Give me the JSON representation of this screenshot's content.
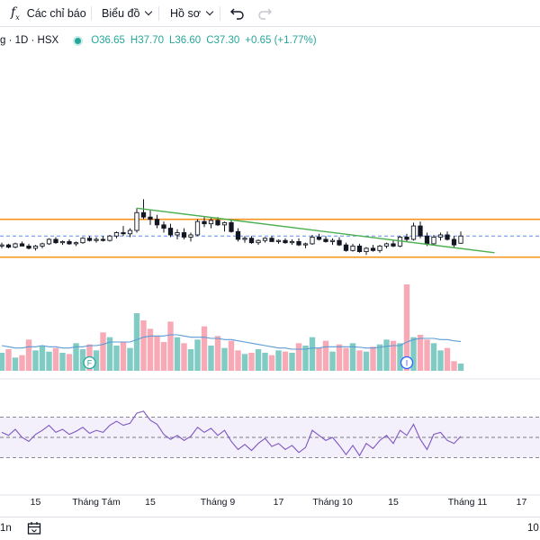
{
  "toolbar": {
    "indicators_icon": "fx-icon",
    "indicators_label": "Các chỉ báo",
    "chart_label": "Biểu đồ",
    "profile_label": "Hồ sơ",
    "undo_icon": "undo-icon",
    "redo_icon": "redo-icon"
  },
  "legend": {
    "symbol": "g · 1D · HSX",
    "open": "O36.65",
    "high": "H37.70",
    "low": "L36.60",
    "close": "C37.30",
    "change": "+0.65 (+1.77%)",
    "up_color": "#26a69a",
    "down_color": "#131722"
  },
  "x_axis": {
    "labels": [
      "15",
      "Tháng Tám",
      "15",
      "Tháng 9",
      "17",
      "Tháng 10",
      "15",
      "Tháng 11",
      "17"
    ]
  },
  "markers": {
    "financial": "F",
    "info": "I"
  },
  "bottom": {
    "timeframe_label": "1n",
    "calendar_icon": "calendar-icon",
    "right_label": "10"
  },
  "colors": {
    "support_resistance": "#f7931a",
    "trendline": "#4caf50",
    "volume_up": "#80cbc4",
    "volume_down": "#f7a9b6",
    "volume_ma": "#5b9bd5",
    "rsi_line": "#7e57c2",
    "rsi_band": "#f3effb"
  },
  "chart_data": {
    "type": "candlestick",
    "title": "g · 1D · HSX",
    "price_panel": {
      "ohlc": [
        [
          36.4,
          36.7,
          36.2,
          36.5
        ],
        [
          36.5,
          36.6,
          36.2,
          36.3
        ],
        [
          36.3,
          36.7,
          36.2,
          36.6
        ],
        [
          36.6,
          36.8,
          36.4,
          36.4
        ],
        [
          36.4,
          36.6,
          36.1,
          36.2
        ],
        [
          36.2,
          36.5,
          36.0,
          36.4
        ],
        [
          36.4,
          36.7,
          36.2,
          36.6
        ],
        [
          36.6,
          37.1,
          36.5,
          37.0
        ],
        [
          37.0,
          37.2,
          36.6,
          36.7
        ],
        [
          36.7,
          36.9,
          36.5,
          36.8
        ],
        [
          36.8,
          37.0,
          36.5,
          36.6
        ],
        [
          36.6,
          36.8,
          36.4,
          36.7
        ],
        [
          36.7,
          37.2,
          36.6,
          37.1
        ],
        [
          37.1,
          37.3,
          36.8,
          36.9
        ],
        [
          36.9,
          37.2,
          36.7,
          37.0
        ],
        [
          37.0,
          37.3,
          36.8,
          36.9
        ],
        [
          36.9,
          37.4,
          36.8,
          37.3
        ],
        [
          37.3,
          37.7,
          37.1,
          37.6
        ],
        [
          37.6,
          38.2,
          37.3,
          37.5
        ],
        [
          37.5,
          38.0,
          37.2,
          37.8
        ],
        [
          37.8,
          39.8,
          37.6,
          39.4
        ],
        [
          39.4,
          40.6,
          38.8,
          39.0
        ],
        [
          39.0,
          39.6,
          38.3,
          38.8
        ],
        [
          38.8,
          39.2,
          38.0,
          38.3
        ],
        [
          38.3,
          38.6,
          37.6,
          38.0
        ],
        [
          38.0,
          38.4,
          37.2,
          37.4
        ],
        [
          37.4,
          37.9,
          37.0,
          37.6
        ],
        [
          37.6,
          38.0,
          37.0,
          37.2
        ],
        [
          37.2,
          37.6,
          36.8,
          37.4
        ],
        [
          37.4,
          38.8,
          37.3,
          38.6
        ],
        [
          38.6,
          39.0,
          38.1,
          38.4
        ],
        [
          38.4,
          38.9,
          38.0,
          38.7
        ],
        [
          38.7,
          39.0,
          38.2,
          38.3
        ],
        [
          38.3,
          38.6,
          37.7,
          38.5
        ],
        [
          38.5,
          38.8,
          37.6,
          37.7
        ],
        [
          37.7,
          38.0,
          36.8,
          37.0
        ],
        [
          37.0,
          37.3,
          36.7,
          37.1
        ],
        [
          37.1,
          37.3,
          36.6,
          36.7
        ],
        [
          36.7,
          37.0,
          36.5,
          36.9
        ],
        [
          36.9,
          37.2,
          36.7,
          37.1
        ],
        [
          37.1,
          37.3,
          36.8,
          36.8
        ],
        [
          36.8,
          37.0,
          36.6,
          36.9
        ],
        [
          36.9,
          37.1,
          36.6,
          36.7
        ],
        [
          36.7,
          37.0,
          36.5,
          36.8
        ],
        [
          36.8,
          37.1,
          36.4,
          36.5
        ],
        [
          36.5,
          36.7,
          36.2,
          36.6
        ],
        [
          36.6,
          37.4,
          36.5,
          37.2
        ],
        [
          37.2,
          37.5,
          36.9,
          37.0
        ],
        [
          37.0,
          37.3,
          36.7,
          36.8
        ],
        [
          36.8,
          37.1,
          36.5,
          36.9
        ],
        [
          36.9,
          37.2,
          36.4,
          36.5
        ],
        [
          36.5,
          36.7,
          35.9,
          36.0
        ],
        [
          36.0,
          36.6,
          35.9,
          36.4
        ],
        [
          36.4,
          36.6,
          35.8,
          35.9
        ],
        [
          35.9,
          36.3,
          35.6,
          36.2
        ],
        [
          36.2,
          36.5,
          35.9,
          36.0
        ],
        [
          36.0,
          36.5,
          35.8,
          36.4
        ],
        [
          36.4,
          36.7,
          36.2,
          36.6
        ],
        [
          36.6,
          36.9,
          36.3,
          36.4
        ],
        [
          36.4,
          37.3,
          36.3,
          37.2
        ],
        [
          37.2,
          37.5,
          36.8,
          37.0
        ],
        [
          37.0,
          38.5,
          36.9,
          38.2
        ],
        [
          38.2,
          38.6,
          37.1,
          37.3
        ],
        [
          37.3,
          37.6,
          36.4,
          36.6
        ],
        [
          36.6,
          37.4,
          36.5,
          37.2
        ],
        [
          37.2,
          37.6,
          36.9,
          37.4
        ],
        [
          37.4,
          37.7,
          36.9,
          37.0
        ],
        [
          37.0,
          37.3,
          36.3,
          36.5
        ],
        [
          36.65,
          37.7,
          36.6,
          37.3
        ]
      ],
      "support": 35.4,
      "resistance": 38.8,
      "last_price": 37.3,
      "trendline": [
        [
          20,
          39.8
        ],
        [
          73,
          35.8
        ]
      ],
      "ylim": [
        29.0,
        50.0
      ]
    },
    "volume_panel": {
      "values": [
        0.75,
        0.9,
        0.55,
        0.65,
        1.3,
        0.85,
        1.05,
        0.8,
        0.95,
        0.75,
        0.7,
        1.15,
        0.9,
        1.1,
        0.85,
        1.6,
        1.4,
        1.05,
        1.2,
        0.95,
        2.4,
        2.1,
        1.75,
        1.45,
        1.2,
        2.05,
        1.4,
        1.15,
        0.9,
        1.3,
        1.85,
        1.05,
        1.45,
        0.95,
        1.25,
        0.85,
        0.7,
        0.75,
        0.9,
        0.75,
        0.65,
        0.85,
        0.8,
        0.75,
        1.15,
        1.05,
        1.4,
        0.95,
        1.25,
        0.8,
        1.1,
        0.95,
        1.15,
        0.85,
        0.8,
        1.0,
        1.1,
        1.3,
        1.25,
        1.15,
        3.6,
        1.4,
        1.5,
        1.3,
        1.15,
        0.85,
        0.95,
        0.4,
        0.3
      ],
      "up": [
        1,
        0,
        1,
        0,
        0,
        1,
        1,
        1,
        0,
        1,
        0,
        1,
        1,
        0,
        1,
        0,
        1,
        1,
        0,
        1,
        1,
        0,
        0,
        0,
        0,
        0,
        1,
        0,
        1,
        1,
        0,
        1,
        0,
        1,
        0,
        0,
        1,
        0,
        1,
        1,
        0,
        1,
        0,
        1,
        0,
        1,
        1,
        0,
        0,
        1,
        0,
        0,
        1,
        0,
        1,
        0,
        1,
        1,
        0,
        1,
        0,
        1,
        0,
        0,
        1,
        1,
        0,
        0,
        1
      ],
      "ma": [
        1.05,
        1.0,
        0.95,
        0.95,
        1.0,
        1.0,
        1.05,
        1.0,
        1.0,
        0.95,
        0.95,
        1.0,
        1.0,
        1.05,
        1.05,
        1.1,
        1.2,
        1.2,
        1.2,
        1.2,
        1.3,
        1.4,
        1.45,
        1.45,
        1.45,
        1.5,
        1.5,
        1.45,
        1.4,
        1.4,
        1.4,
        1.35,
        1.35,
        1.3,
        1.3,
        1.25,
        1.2,
        1.15,
        1.1,
        1.05,
        1.0,
        0.95,
        0.95,
        0.9,
        0.9,
        0.9,
        0.95,
        0.95,
        1.0,
        1.0,
        1.0,
        1.0,
        1.0,
        0.98,
        0.95,
        0.95,
        0.98,
        1.02,
        1.05,
        1.05,
        1.2,
        1.3,
        1.35,
        1.35,
        1.35,
        1.3,
        1.3,
        1.25,
        1.22
      ],
      "ylim": [
        0,
        4.2
      ]
    },
    "rsi_panel": {
      "values": [
        55,
        52,
        58,
        50,
        46,
        53,
        57,
        62,
        55,
        58,
        53,
        56,
        60,
        54,
        57,
        55,
        62,
        66,
        62,
        64,
        74,
        76,
        67,
        63,
        53,
        48,
        52,
        47,
        51,
        60,
        55,
        59,
        52,
        57,
        46,
        38,
        43,
        37,
        44,
        49,
        41,
        44,
        38,
        42,
        35,
        40,
        57,
        52,
        47,
        50,
        42,
        33,
        42,
        32,
        44,
        39,
        47,
        52,
        44,
        57,
        52,
        63,
        48,
        38,
        53,
        55,
        47,
        44,
        51
      ],
      "overbought": 70,
      "mid": 50,
      "oversold": 30,
      "ylim": [
        0,
        100
      ]
    },
    "x_ticks": [
      {
        "label": "15",
        "bar": 5
      },
      {
        "label": "Tháng Tám",
        "bar": 14
      },
      {
        "label": "15",
        "bar": 22
      },
      {
        "label": "Tháng 9",
        "bar": 32
      },
      {
        "label": "17",
        "bar": 41
      },
      {
        "label": "Tháng 10",
        "bar": 49
      },
      {
        "label": "15",
        "bar": 58
      },
      {
        "label": "Tháng 11",
        "bar": 69
      },
      {
        "label": "17",
        "bar": 77
      }
    ],
    "event_markers": [
      {
        "label": "F",
        "bar": 13,
        "color": "#26a69a"
      },
      {
        "label": "I",
        "bar": 60,
        "color": "#2962ff"
      }
    ]
  }
}
